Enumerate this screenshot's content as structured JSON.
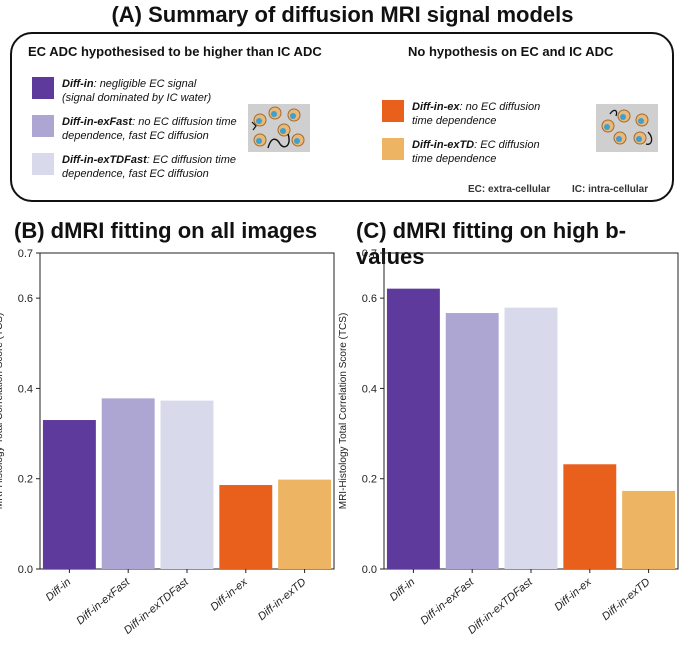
{
  "summary": {
    "title": "(A) Summary of diffusion MRI signal models",
    "left_heading": "EC ADC hypothesised to be higher than IC ADC",
    "right_heading": "No hypothesis on EC and IC ADC",
    "left_items": [
      {
        "name": "Diff-in",
        "line1": ": negligible EC signal",
        "line2": "(signal dominated by IC water)",
        "color": "#5e3a9c"
      },
      {
        "name": "Diff-in-exFast",
        "line1": ": no EC diffusion time",
        "line2": "dependence, fast EC diffusion",
        "color": "#ada6d2"
      },
      {
        "name": "Diff-in-exTDFast",
        "line1": ": EC diffusion time",
        "line2": "dependence, fast EC diffusion",
        "color": "#d9d9ec"
      }
    ],
    "right_items": [
      {
        "name": "Diff-in-ex",
        "line1": ": no EC diffusion",
        "line2": "time dependence",
        "color": "#e8601c"
      },
      {
        "name": "Diff-in-exTD",
        "line1": ": EC diffusion",
        "line2": "time dependence",
        "color": "#edb563"
      }
    ],
    "footnote_ec": "EC: extra-cellular",
    "footnote_ic": "IC: intra-cellular"
  },
  "chart_data": [
    {
      "type": "bar",
      "title": "(B) dMRI fitting on all images",
      "ylabel": "MRI-Histology Total Correlation Score  (TCS)",
      "categories": [
        "Diff-in",
        "Diff-in-exFast",
        "Diff-in-exTDFast",
        "Diff-in-ex",
        "Diff-in-exTD"
      ],
      "values": [
        0.33,
        0.378,
        0.373,
        0.186,
        0.198
      ],
      "colors": [
        "#5e3a9c",
        "#ada6d2",
        "#d9d9ec",
        "#e8601c",
        "#edb563"
      ],
      "ylim": [
        0,
        0.7
      ],
      "yticks": [
        "0.0",
        "0.2",
        "0.4",
        "0.6",
        "0.7"
      ]
    },
    {
      "type": "bar",
      "title": "(C) dMRI fitting on high b-values",
      "ylabel": "MRI-Histology Total Correlation Score  (TCS)",
      "categories": [
        "Diff-in",
        "Diff-in-exFast",
        "Diff-in-exTDFast",
        "Diff-in-ex",
        "Diff-in-exTD"
      ],
      "values": [
        0.621,
        0.567,
        0.579,
        0.232,
        0.173
      ],
      "colors": [
        "#5e3a9c",
        "#ada6d2",
        "#d9d9ec",
        "#e8601c",
        "#edb563"
      ],
      "ylim": [
        0,
        0.7
      ],
      "yticks": [
        "0.0",
        "0.2",
        "0.4",
        "0.6",
        "0.7"
      ]
    }
  ]
}
